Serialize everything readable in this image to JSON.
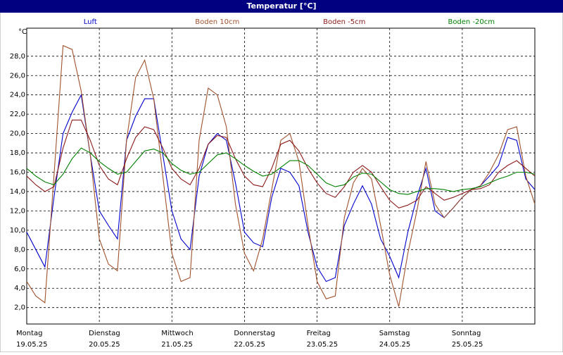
{
  "chart_data": {
    "type": "line",
    "title": "Temperatur [°C]",
    "ylabel": "°C",
    "x": [
      0,
      3,
      6,
      9,
      12,
      15,
      18,
      21,
      24,
      27,
      30,
      33,
      36,
      39,
      42,
      45,
      48,
      51,
      54,
      57,
      60,
      63,
      66,
      69,
      72,
      75,
      78,
      81,
      84,
      87,
      90,
      93,
      96,
      99,
      102,
      105,
      108,
      111,
      114,
      117,
      120,
      123,
      126,
      129,
      132,
      135,
      138,
      141,
      144,
      147,
      150,
      153,
      156,
      159,
      162,
      165,
      168
    ],
    "xlim": [
      0,
      168
    ],
    "xticks": [
      {
        "value": 0,
        "label": "Montag"
      },
      {
        "value": 24,
        "label": "Dienstag"
      },
      {
        "value": 48,
        "label": "Mittwoch"
      },
      {
        "value": 72,
        "label": "Donnerstag"
      },
      {
        "value": 96,
        "label": "Freitag"
      },
      {
        "value": 120,
        "label": "Samstag"
      },
      {
        "value": 144,
        "label": "Sonntag"
      }
    ],
    "xtick_dates": [
      "19.05.25",
      "20.05.25",
      "21.05.25",
      "22.05.25",
      "23.05.25",
      "24.05.25",
      "25.05.25"
    ],
    "ylim": [
      0.3,
      30.9
    ],
    "yticks": [
      {
        "value": 2,
        "label": "2,0"
      },
      {
        "value": 4,
        "label": "4,0"
      },
      {
        "value": 6,
        "label": "6,0"
      },
      {
        "value": 8,
        "label": "8,0"
      },
      {
        "value": 10,
        "label": "10,0"
      },
      {
        "value": 12,
        "label": "12,0"
      },
      {
        "value": 14,
        "label": "14,0"
      },
      {
        "value": 16,
        "label": "16,0"
      },
      {
        "value": 18,
        "label": "18,0"
      },
      {
        "value": 20,
        "label": "20,0"
      },
      {
        "value": 22,
        "label": "22,0"
      },
      {
        "value": 24,
        "label": "24,0"
      },
      {
        "value": 26,
        "label": "26,0"
      },
      {
        "value": 28,
        "label": "28,0"
      }
    ],
    "grid": true,
    "series": [
      {
        "name": "Luft",
        "color": "#0000cc",
        "values": [
          9.8,
          8.0,
          6.2,
          13.4,
          20.0,
          22.2,
          24.0,
          17.8,
          12.0,
          10.5,
          9.1,
          19.3,
          21.8,
          23.6,
          23.6,
          17.8,
          12.0,
          9.1,
          8.0,
          15.6,
          18.9,
          20.0,
          19.3,
          14.9,
          9.8,
          8.7,
          8.3,
          13.4,
          16.4,
          16.0,
          14.6,
          9.8,
          6.2,
          4.7,
          5.1,
          10.5,
          12.7,
          14.6,
          12.7,
          9.1,
          7.3,
          5.1,
          9.8,
          13.4,
          16.4,
          12.0,
          11.3,
          12.3,
          13.4,
          14.2,
          14.6,
          15.6,
          16.7,
          19.6,
          19.3,
          15.3,
          14.2
        ]
      },
      {
        "name": "Boden 10cm",
        "color": "#a0522d",
        "values": [
          4.7,
          3.2,
          2.5,
          15.6,
          29.1,
          28.7,
          24.4,
          17.8,
          9.1,
          6.5,
          5.8,
          19.3,
          25.8,
          27.6,
          23.6,
          15.6,
          7.6,
          4.7,
          5.1,
          19.3,
          24.7,
          24.0,
          20.7,
          12.7,
          7.6,
          5.8,
          9.1,
          14.2,
          19.3,
          20.0,
          17.1,
          10.5,
          4.7,
          2.9,
          3.2,
          11.3,
          14.9,
          16.4,
          15.3,
          10.5,
          5.4,
          2.1,
          7.6,
          12.0,
          17.1,
          12.7,
          11.3,
          12.3,
          13.4,
          14.2,
          14.6,
          16.0,
          17.8,
          20.4,
          20.7,
          15.6,
          12.7
        ]
      },
      {
        "name": "Boden -5cm",
        "color": "#8b1a1a",
        "values": [
          15.6,
          14.7,
          14.0,
          14.5,
          18.5,
          21.4,
          21.4,
          19.3,
          16.7,
          15.3,
          14.7,
          17.4,
          19.6,
          20.7,
          20.4,
          18.5,
          16.4,
          15.3,
          14.7,
          16.4,
          18.9,
          19.8,
          19.6,
          17.4,
          15.6,
          14.7,
          14.5,
          16.4,
          18.9,
          19.3,
          18.2,
          16.4,
          14.9,
          13.8,
          13.4,
          14.5,
          16.0,
          16.7,
          16.0,
          14.5,
          13.1,
          12.3,
          12.6,
          13.1,
          14.5,
          13.8,
          13.1,
          13.4,
          13.8,
          14.2,
          14.3,
          14.7,
          16.0,
          16.7,
          17.2,
          16.4,
          15.6
        ]
      },
      {
        "name": "Boden -20cm",
        "color": "#008000",
        "values": [
          16.4,
          15.6,
          15.0,
          14.7,
          15.8,
          17.4,
          18.5,
          18.0,
          17.1,
          16.4,
          15.8,
          16.0,
          17.1,
          18.2,
          18.4,
          18.0,
          16.9,
          16.2,
          15.8,
          16.0,
          16.9,
          17.8,
          18.0,
          17.4,
          16.7,
          16.1,
          15.6,
          15.8,
          16.5,
          17.2,
          17.2,
          16.7,
          15.8,
          14.9,
          14.5,
          14.7,
          15.5,
          15.9,
          15.8,
          15.0,
          14.2,
          13.8,
          13.7,
          14.0,
          14.3,
          14.3,
          14.2,
          14.0,
          14.2,
          14.3,
          14.5,
          14.9,
          15.3,
          15.6,
          16.0,
          16.0,
          15.8
        ]
      }
    ]
  }
}
